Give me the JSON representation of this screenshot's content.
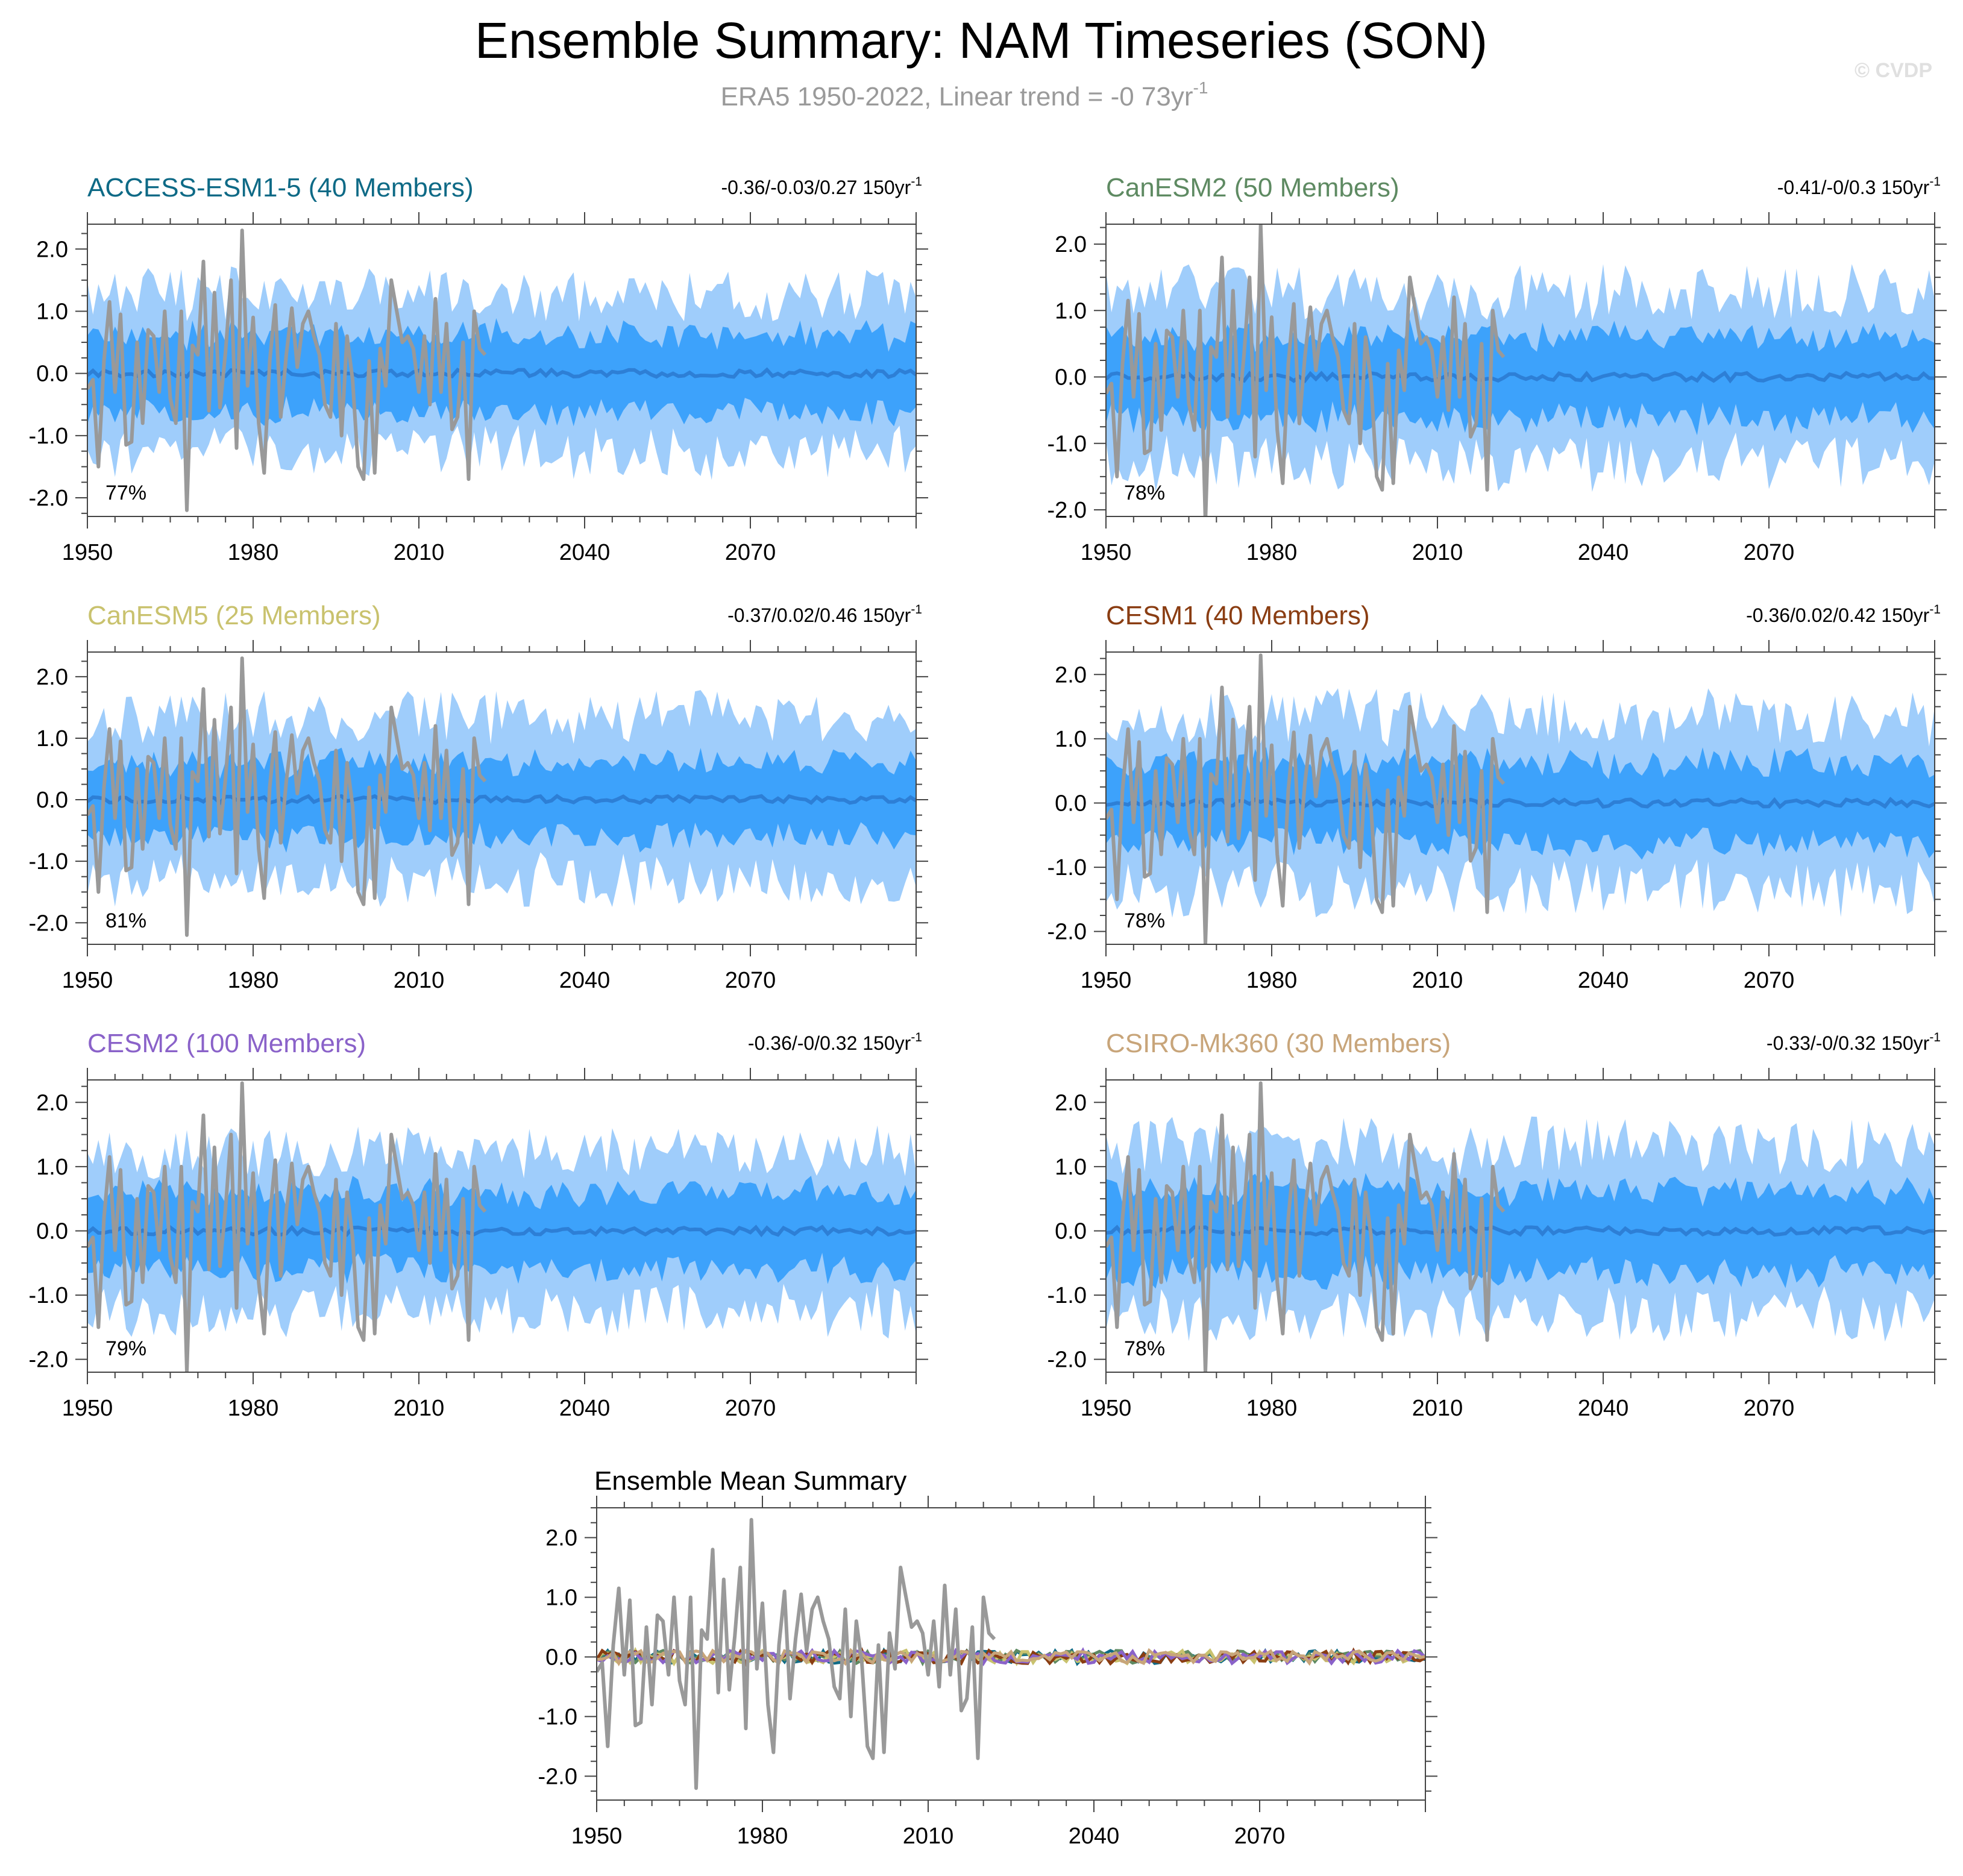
{
  "title": "Ensemble Summary: NAM Timeseries (SON)",
  "subtitle_main": "ERA5 1950-2022, Linear trend = -0 73yr",
  "subtitle_sup": "-1",
  "watermark": "© CVDP",
  "colors": {
    "band_outer": "#9fcdfb",
    "band_inner": "#3da2fb",
    "ens_mean": "#2d7fd6",
    "obs": "#999999",
    "axis": "#444444"
  },
  "chart_data": [
    {
      "type": "area",
      "title": "ACCESS-ESM1-5 (40 Members)",
      "title_color": "#0e6a86",
      "trend_label": "-0.36/-0.03/0.27 150yr",
      "trend_sup": "-1",
      "percent": "77%",
      "xlim": [
        1950,
        2100
      ],
      "ylim": [
        -2.3,
        2.4
      ],
      "xticks": [
        "1950",
        "1980",
        "2010",
        "2040",
        "2070"
      ],
      "yticks": [
        "2.0",
        "1.0",
        "0.0",
        "-1.0",
        "-2.0"
      ],
      "band_inner": 0.62,
      "band_outer": 1.25,
      "seed": 3
    },
    {
      "type": "area",
      "title": "CanESM2 (50 Members)",
      "title_color": "#5e8a62",
      "trend_label": "-0.41/-0/0.3 150yr",
      "trend_sup": "-1",
      "percent": "78%",
      "xlim": [
        1950,
        2100
      ],
      "ylim": [
        -2.1,
        2.3
      ],
      "xticks": [
        "1950",
        "1980",
        "2010",
        "2040",
        "2070"
      ],
      "yticks": [
        "2.0",
        "1.0",
        "0.0",
        "-1.0",
        "-2.0"
      ],
      "band_inner": 0.62,
      "band_outer": 1.25,
      "seed": 7
    },
    {
      "type": "area",
      "title": "CanESM5 (25 Members)",
      "title_color": "#c9c26e",
      "trend_label": "-0.37/0.02/0.46 150yr",
      "trend_sup": "-1",
      "percent": "81%",
      "xlim": [
        1950,
        2100
      ],
      "ylim": [
        -2.35,
        2.4
      ],
      "xticks": [
        "1950",
        "1980",
        "2010",
        "2040",
        "2070"
      ],
      "yticks": [
        "2.0",
        "1.0",
        "0.0",
        "-1.0",
        "-2.0"
      ],
      "band_inner": 0.6,
      "band_outer": 1.3,
      "seed": 11
    },
    {
      "type": "area",
      "title": "CESM1 (40 Members)",
      "title_color": "#8a3d12",
      "trend_label": "-0.36/0.02/0.42 150yr",
      "trend_sup": "-1",
      "percent": "78%",
      "xlim": [
        1950,
        2100
      ],
      "ylim": [
        -2.2,
        2.35
      ],
      "xticks": [
        "1950",
        "1980",
        "2010",
        "2040",
        "2070"
      ],
      "yticks": [
        "2.0",
        "1.0",
        "0.0",
        "-1.0",
        "-2.0"
      ],
      "band_inner": 0.62,
      "band_outer": 1.3,
      "seed": 17
    },
    {
      "type": "area",
      "title": "CESM2 (100 Members)",
      "title_color": "#8a62c9",
      "trend_label": "-0.36/-0/0.32 150yr",
      "trend_sup": "-1",
      "percent": "79%",
      "xlim": [
        1950,
        2100
      ],
      "ylim": [
        -2.2,
        2.35
      ],
      "xticks": [
        "1950",
        "1980",
        "2010",
        "2040",
        "2070"
      ],
      "yticks": [
        "2.0",
        "1.0",
        "0.0",
        "-1.0",
        "-2.0"
      ],
      "band_inner": 0.6,
      "band_outer": 1.2,
      "seed": 23
    },
    {
      "type": "area",
      "title": "CSIRO-Mk360 (30 Members)",
      "title_color": "#c8a57a",
      "trend_label": "-0.33/-0/0.32 150yr",
      "trend_sup": "-1",
      "percent": "78%",
      "xlim": [
        1950,
        2100
      ],
      "ylim": [
        -2.2,
        2.35
      ],
      "xticks": [
        "1950",
        "1980",
        "2010",
        "2040",
        "2070"
      ],
      "yticks": [
        "2.0",
        "1.0",
        "0.0",
        "-1.0",
        "-2.0"
      ],
      "band_inner": 0.65,
      "band_outer": 1.3,
      "seed": 29
    },
    {
      "type": "line",
      "title": "Ensemble Mean Summary",
      "title_color": "#000000",
      "xlim": [
        1950,
        2100
      ],
      "ylim": [
        -2.4,
        2.5
      ],
      "xticks": [
        "1950",
        "1980",
        "2010",
        "2040",
        "2070"
      ],
      "yticks": [
        "2.0",
        "1.0",
        "0.0",
        "-1.0",
        "-2.0"
      ],
      "series_colors": [
        "#0e6a86",
        "#5e8a62",
        "#c9c26e",
        "#8a3d12",
        "#8a62c9",
        "#c8a57a"
      ]
    }
  ],
  "obs_series": {
    "x": [
      1950,
      1951,
      1952,
      1953,
      1954,
      1955,
      1956,
      1957,
      1958,
      1959,
      1960,
      1961,
      1962,
      1963,
      1964,
      1965,
      1966,
      1967,
      1968,
      1969,
      1970,
      1971,
      1972,
      1973,
      1974,
      1975,
      1976,
      1977,
      1978,
      1979,
      1980,
      1981,
      1982,
      1983,
      1984,
      1985,
      1986,
      1987,
      1988,
      1989,
      1990,
      1991,
      1992,
      1993,
      1994,
      1995,
      1996,
      1997,
      1998,
      1999,
      2000,
      2001,
      2002,
      2003,
      2004,
      2005,
      2006,
      2007,
      2008,
      2009,
      2010,
      2011,
      2012,
      2013,
      2014,
      2015,
      2016,
      2017,
      2018,
      2019,
      2020,
      2021,
      2022
    ],
    "y": [
      -0.25,
      -0.1,
      -1.5,
      0.2,
      1.15,
      -0.3,
      0.95,
      -1.15,
      -1.1,
      0.5,
      -0.8,
      0.7,
      0.6,
      -0.3,
      1.0,
      -0.4,
      -0.8,
      1.0,
      -2.2,
      0.45,
      0.3,
      1.8,
      -0.6,
      1.3,
      -0.55,
      0.35,
      1.5,
      -1.2,
      2.3,
      -0.2,
      0.9,
      -0.8,
      -1.6,
      0.2,
      1.1,
      -0.7,
      0.3,
      1.05,
      0.1,
      0.8,
      1.0,
      0.6,
      0.3,
      -0.5,
      -0.7,
      0.8,
      -1.0,
      0.6,
      -0.1,
      -1.5,
      -1.7,
      0.2,
      -1.6,
      0.4,
      -0.2,
      1.5,
      1.0,
      0.5,
      0.6,
      0.4,
      -0.3,
      0.6,
      -0.5,
      1.2,
      -0.3,
      0.8,
      -0.9,
      -0.7,
      0.5,
      -1.7,
      1.0,
      0.4,
      0.3
    ]
  }
}
